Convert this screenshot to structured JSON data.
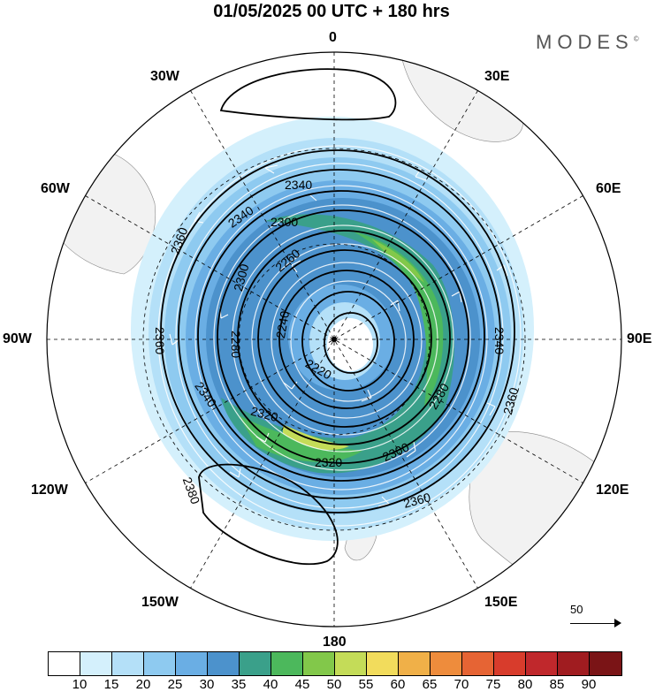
{
  "title": "01/05/2025  00 UTC  + 180 hrs",
  "brand": {
    "name": "MODES",
    "mark": "©"
  },
  "longitude_labels": {
    "n": "0",
    "s": "180",
    "w90": "90W",
    "e90": "90E",
    "w30": "30W",
    "e30": "30E",
    "w60": "60W",
    "e60": "60E",
    "w120": "120W",
    "e120": "120E",
    "w150": "150W",
    "e150": "150E"
  },
  "contours": [
    {
      "label": "2340"
    },
    {
      "label": "2360"
    },
    {
      "label": "2380"
    },
    {
      "label": "2300"
    },
    {
      "label": "2260"
    },
    {
      "label": "2240"
    },
    {
      "label": "2280"
    },
    {
      "label": "2220"
    },
    {
      "label": "2320"
    }
  ],
  "contour_labels": {
    "c2340_top": "2340",
    "c2340_left": "2340",
    "c2360_left": "2360",
    "c2360_left2": "2360",
    "c2300_top": "2300",
    "c2300_left": "2300",
    "c2260": "2260",
    "c2240": "2240",
    "c2280_left": "2280",
    "c2220": "2220",
    "c2320_left": "2320",
    "c2320_bottom": "2320",
    "c2300_bottom": "2300",
    "c2280_right": "2280",
    "c2360_right": "2360",
    "c2360_bottom": "2360",
    "c2340_right": "2340",
    "c2340_bl": "2340",
    "c2380": "2380"
  },
  "reference_vector": "50",
  "colorbar": {
    "ticks": [
      "10",
      "15",
      "20",
      "25",
      "30",
      "35",
      "40",
      "45",
      "50",
      "55",
      "60",
      "65",
      "70",
      "75",
      "80",
      "85",
      "90"
    ],
    "colors": [
      "#ffffff",
      "#d4f0fc",
      "#b4e0f8",
      "#8ecaf0",
      "#6aaee4",
      "#4c92cc",
      "#3aa08a",
      "#4cb85c",
      "#82c84a",
      "#c4dc58",
      "#f2dc5c",
      "#f0b048",
      "#ee8c3c",
      "#e66434",
      "#d83c2c",
      "#c0282c",
      "#a01c20",
      "#7a1416"
    ]
  }
}
